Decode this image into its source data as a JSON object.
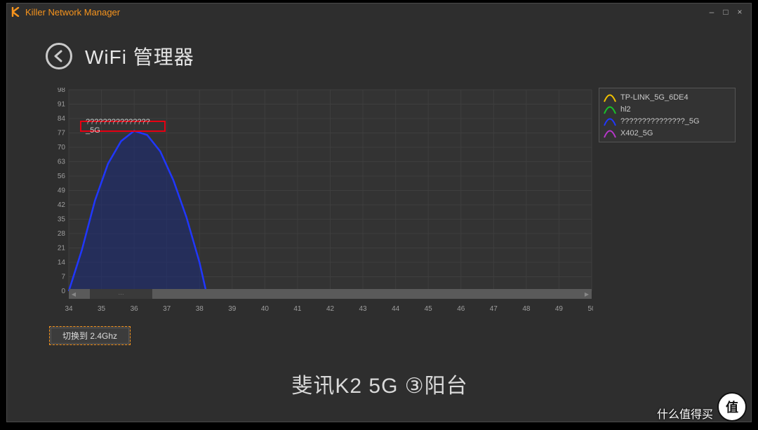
{
  "window": {
    "title": "Killer Network Manager",
    "accent_color": "#f7941d",
    "bg_color": "#2e2e2e",
    "border_color": "#4a4a4a"
  },
  "header": {
    "title": "WiFi 管理器"
  },
  "chart": {
    "type": "area",
    "plot_bg": "#333333",
    "grid_color": "#3e3e3e",
    "grid_major_color": "#454545",
    "axis_label_color": "#9e9e9e",
    "axis_fontsize": 10,
    "x": {
      "min": 34,
      "max": 50,
      "tick_step": 1,
      "ticks": [
        34,
        35,
        36,
        37,
        38,
        39,
        40,
        41,
        42,
        43,
        44,
        45,
        46,
        47,
        48,
        49,
        50
      ]
    },
    "y": {
      "min": 0,
      "max": 98,
      "tick_step": 7,
      "ticks": [
        0,
        7,
        14,
        21,
        28,
        35,
        42,
        49,
        56,
        63,
        70,
        77,
        84,
        91,
        98
      ]
    },
    "series": [
      {
        "name": "???????????????_5G",
        "stroke": "#2037ff",
        "fill": "#1a2a7a",
        "fill_opacity": 0.55,
        "line_width": 2.5,
        "points": [
          [
            34,
            0
          ],
          [
            34.4,
            20
          ],
          [
            34.8,
            44
          ],
          [
            35.2,
            62
          ],
          [
            35.6,
            73
          ],
          [
            36.0,
            78
          ],
          [
            36.4,
            76
          ],
          [
            36.8,
            68
          ],
          [
            37.2,
            54
          ],
          [
            37.6,
            36
          ],
          [
            38.0,
            14
          ],
          [
            38.2,
            0
          ]
        ]
      }
    ],
    "highlight": {
      "label": "???????????????_5G",
      "border_color": "#e60012",
      "x_channel": 36,
      "y_value": 84
    }
  },
  "legend": {
    "bg_color": "#333333",
    "label_color": "#c9c9c9",
    "items": [
      {
        "label": "TP-LINK_5G_6DE4",
        "color": "#f2c200"
      },
      {
        "label": "hl2",
        "color": "#18c22a"
      },
      {
        "label": "???????????????_5G",
        "color": "#2037ff"
      },
      {
        "label": "X402_5G",
        "color": "#b536c9"
      }
    ]
  },
  "scrollbar": {
    "track_color": "#5a5a5a",
    "thumb_color": "#3a3a3a",
    "thumb_left_pct": 4,
    "thumb_width_pct": 12
  },
  "button": {
    "switch_label": "切换到 2.4Ghz"
  },
  "caption": "斐讯K2 5G ③阳台",
  "watermark": {
    "badge": "值",
    "text": "什么值得买"
  }
}
